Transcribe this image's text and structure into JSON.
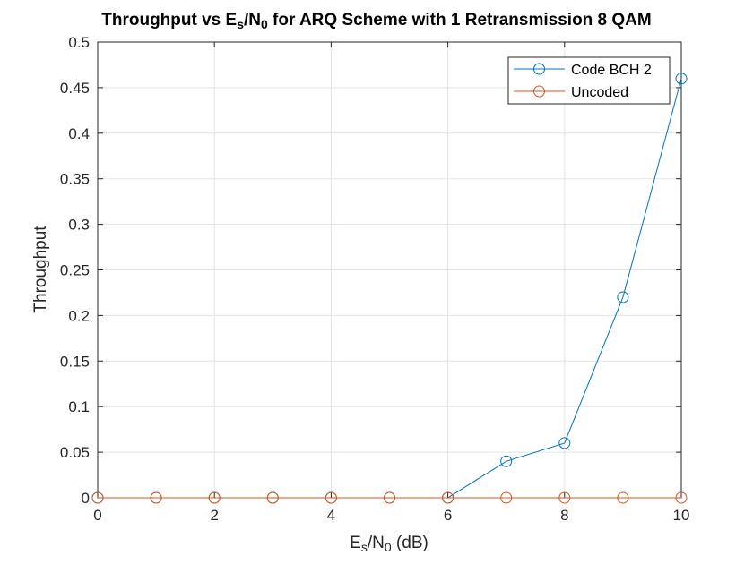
{
  "chart_data": {
    "type": "line",
    "title": {
      "prefix": "Throughput vs E",
      "sub1": "s",
      "mid": "/N",
      "sub2": "0",
      "suffix": " for ARQ Scheme with 1 Retransmission 8 QAM"
    },
    "xlabel": {
      "prefix": "E",
      "sub1": "s",
      "mid": "/N",
      "sub2": "0",
      "suffix": " (dB)"
    },
    "ylabel": "Throughput",
    "xlim": [
      0,
      10
    ],
    "ylim": [
      0,
      0.5
    ],
    "xticks": [
      0,
      2,
      4,
      6,
      8,
      10
    ],
    "xtick_labels": [
      "0",
      "2",
      "4",
      "6",
      "8",
      "10"
    ],
    "yticks": [
      0,
      0.05,
      0.1,
      0.15,
      0.2,
      0.25,
      0.3,
      0.35,
      0.4,
      0.45,
      0.5
    ],
    "ytick_labels": [
      "0",
      "0.05",
      "0.1",
      "0.15",
      "0.2",
      "0.25",
      "0.3",
      "0.35",
      "0.4",
      "0.45",
      "0.5"
    ],
    "grid": true,
    "legend_position": "top-right",
    "x": [
      0,
      1,
      2,
      3,
      4,
      5,
      6,
      7,
      8,
      9,
      10
    ],
    "series": [
      {
        "name": "Code BCH 2",
        "color": "#0072BD",
        "marker": "circle",
        "values": [
          0,
          0,
          0,
          0,
          0,
          0,
          0,
          0.04,
          0.06,
          0.22,
          0.46
        ]
      },
      {
        "name": "Uncoded",
        "color": "#D95319",
        "marker": "circle",
        "values": [
          0,
          0,
          0,
          0,
          0,
          0,
          0,
          0,
          0,
          0,
          0
        ]
      }
    ]
  }
}
